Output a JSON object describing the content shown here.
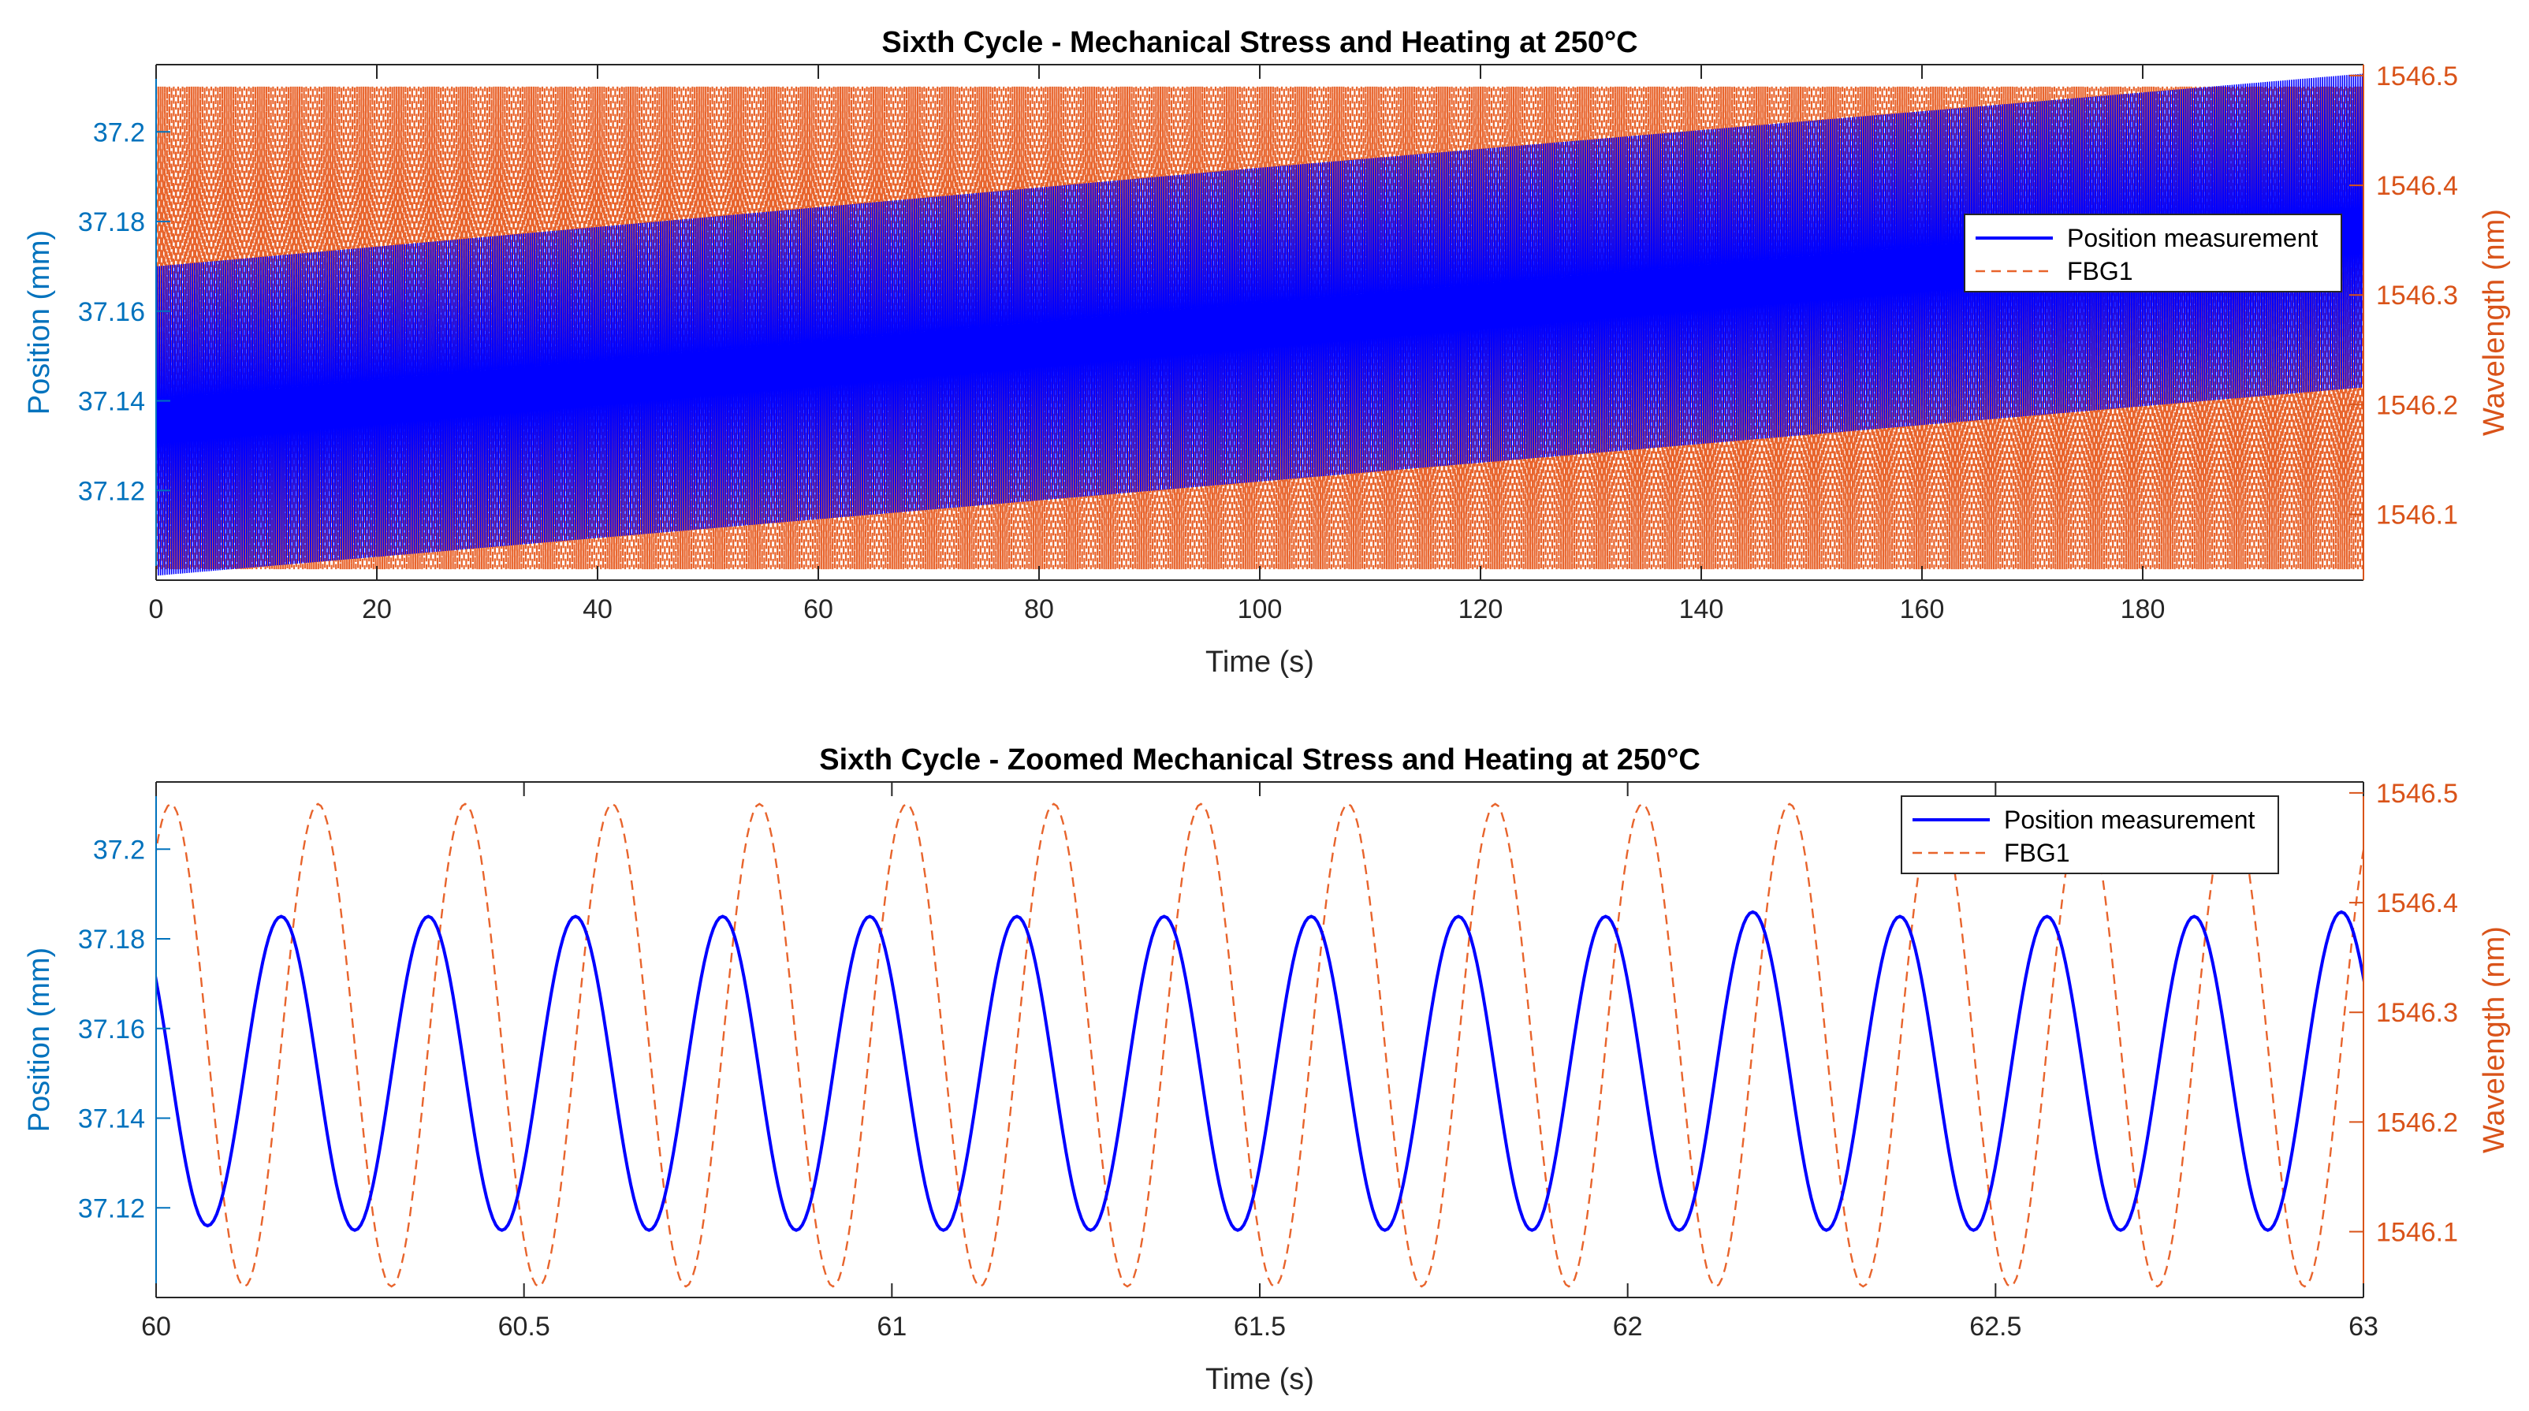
{
  "colors": {
    "left_axis": "#0072BD",
    "right_axis": "#D95319",
    "position_line": "#0000FF",
    "fbg_line": "#E8642C",
    "axes": "#262626"
  },
  "chart_data": [
    {
      "type": "line",
      "title": "Sixth Cycle - Mechanical Stress and Heating at 250°C",
      "xlabel": "Time (s)",
      "ylabel_left": "Position (mm)",
      "ylabel_right": "Wavelength (nm)",
      "xlim": [
        0,
        200
      ],
      "ylim_left": [
        37.1,
        37.215
      ],
      "ylim_right": [
        1546.04,
        1546.51
      ],
      "x_ticks": [
        0,
        20,
        40,
        60,
        80,
        100,
        120,
        140,
        160,
        180
      ],
      "x_tick_labels": [
        "0",
        "20",
        "40",
        "60",
        "80",
        "100",
        "120",
        "140",
        "160",
        "180"
      ],
      "y_ticks_left": [
        37.12,
        37.14,
        37.16,
        37.18,
        37.2
      ],
      "y_tick_labels_left": [
        "37.12",
        "37.14",
        "37.16",
        "37.18",
        "37.2"
      ],
      "y_ticks_right": [
        1546.1,
        1546.2,
        1546.3,
        1546.4,
        1546.5
      ],
      "y_tick_labels_right": [
        "1546.1",
        "1546.2",
        "1546.3",
        "1546.4",
        "1546.5"
      ],
      "legend_position": "right",
      "series": [
        {
          "name": "Position measurement",
          "axis": "left",
          "style": "solid",
          "oscillation_period_s": 0.2,
          "envelope_x": [
            0,
            100,
            200
          ],
          "envelope_min": [
            37.101,
            37.122,
            37.143
          ],
          "envelope_max": [
            37.17,
            37.192,
            37.213
          ]
        },
        {
          "name": "FBG1",
          "axis": "right",
          "style": "dashed",
          "oscillation_period_s": 0.2,
          "envelope_x": [
            0,
            200
          ],
          "envelope_min": [
            1546.05,
            1546.05
          ],
          "envelope_max": [
            1546.49,
            1546.49
          ]
        }
      ]
    },
    {
      "type": "line",
      "title": "Sixth Cycle - Zoomed Mechanical Stress and Heating at 250°C",
      "xlabel": "Time (s)",
      "ylabel_left": "Position (mm)",
      "ylabel_right": "Wavelength (nm)",
      "xlim": [
        60,
        63
      ],
      "ylim_left": [
        37.1,
        37.215
      ],
      "ylim_right": [
        1546.04,
        1546.51
      ],
      "x_ticks": [
        60,
        60.5,
        61,
        61.5,
        62,
        62.5,
        63
      ],
      "x_tick_labels": [
        "60",
        "60.5",
        "61",
        "61.5",
        "62",
        "62.5",
        "63"
      ],
      "y_ticks_left": [
        37.12,
        37.14,
        37.16,
        37.18,
        37.2
      ],
      "y_tick_labels_left": [
        "37.12",
        "37.14",
        "37.16",
        "37.18",
        "37.2"
      ],
      "y_ticks_right": [
        1546.1,
        1546.2,
        1546.3,
        1546.4,
        1546.5
      ],
      "y_tick_labels_right": [
        "1546.1",
        "1546.2",
        "1546.3",
        "1546.4",
        "1546.5"
      ],
      "legend_position": "top-right",
      "series": [
        {
          "name": "Position measurement",
          "axis": "left",
          "style": "solid",
          "peak_times": [
            60.17,
            60.37,
            60.57,
            60.77,
            60.97,
            61.17,
            61.37,
            61.57,
            61.77,
            61.97,
            62.17,
            62.37,
            62.57,
            62.77,
            62.97
          ],
          "peak_values": [
            37.185,
            37.185,
            37.185,
            37.185,
            37.185,
            37.185,
            37.185,
            37.185,
            37.185,
            37.185,
            37.186,
            37.185,
            37.185,
            37.185,
            37.186
          ],
          "trough_times": [
            60.07,
            60.27,
            60.47,
            60.67,
            60.87,
            61.07,
            61.27,
            61.47,
            61.67,
            61.87,
            62.07,
            62.27,
            62.47,
            62.67,
            62.87
          ],
          "trough_values": [
            37.116,
            37.115,
            37.115,
            37.115,
            37.115,
            37.115,
            37.115,
            37.115,
            37.115,
            37.115,
            37.115,
            37.115,
            37.115,
            37.115,
            37.115
          ]
        },
        {
          "name": "FBG1",
          "axis": "right",
          "style": "dashed",
          "peak_times": [
            60.02,
            60.22,
            60.42,
            60.62,
            60.82,
            61.02,
            61.22,
            61.42,
            61.62,
            61.82,
            62.02,
            62.22,
            62.42,
            62.62,
            62.82
          ],
          "peak_values": [
            1546.49,
            1546.49,
            1546.49,
            1546.49,
            1546.49,
            1546.49,
            1546.49,
            1546.49,
            1546.49,
            1546.49,
            1546.49,
            1546.49,
            1546.49,
            1546.49,
            1546.49
          ],
          "trough_times": [
            60.12,
            60.32,
            60.52,
            60.72,
            60.92,
            61.12,
            61.32,
            61.52,
            61.72,
            61.92,
            62.12,
            62.32,
            62.52,
            62.72,
            62.92
          ],
          "trough_values": [
            1546.05,
            1546.05,
            1546.05,
            1546.05,
            1546.05,
            1546.05,
            1546.05,
            1546.05,
            1546.05,
            1546.05,
            1546.05,
            1546.05,
            1546.05,
            1546.05,
            1546.05
          ]
        }
      ]
    }
  ]
}
